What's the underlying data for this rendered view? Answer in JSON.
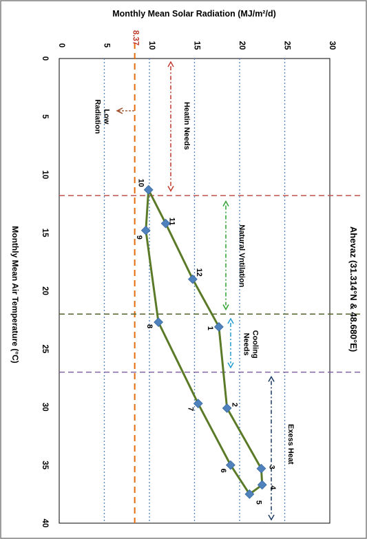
{
  "chart_data": {
    "type": "line",
    "title": "Ahevaz (31.314°N & 48.680°E)",
    "xlabel": "Monthly Mean Air Temperature (°C)",
    "ylabel": "Monthly Mean Solar Radiation (MJ/m²/d)",
    "xlim": [
      0,
      40
    ],
    "ylim": [
      0,
      30
    ],
    "x_ticks": [
      "0",
      "5",
      "10",
      "15",
      "20",
      "25",
      "30",
      "35",
      "40"
    ],
    "y_ticks": [
      "0",
      "5",
      "10",
      "15",
      "20",
      "25",
      "30"
    ],
    "grid": "horizontal dotted at y = 5, 10, 15, 20, 25",
    "orientation": "rotated 90° clockwise",
    "series": [
      {
        "color": "#5a7a28",
        "marker_color": "#4f81bd",
        "points": [
          {
            "label": "1",
            "x": 23.1,
            "y": 17.7
          },
          {
            "label": "2",
            "x": 30.1,
            "y": 18.6
          },
          {
            "label": "3",
            "x": 35.3,
            "y": 22.4
          },
          {
            "label": "4",
            "x": 36.7,
            "y": 22.5
          },
          {
            "label": "5",
            "x": 37.5,
            "y": 21.1
          },
          {
            "label": "6",
            "x": 35.0,
            "y": 19.0
          },
          {
            "label": "7",
            "x": 29.7,
            "y": 15.4
          },
          {
            "label": "8",
            "x": 22.7,
            "y": 11.0
          },
          {
            "label": "9",
            "x": 14.8,
            "y": 9.6
          },
          {
            "label": "10",
            "x": 11.3,
            "y": 9.9
          },
          {
            "label": "11",
            "x": 14.2,
            "y": 11.8
          },
          {
            "label": "12",
            "x": 19.0,
            "y": 14.8
          }
        ]
      }
    ],
    "reference_lines": [
      {
        "axis": "y",
        "value": 8.37,
        "label": "8.37",
        "color": "#e46c0a"
      },
      {
        "axis": "x",
        "value": 11.8,
        "color": "#c0504d"
      },
      {
        "axis": "x",
        "value": 22.0,
        "color": "#4f6228"
      },
      {
        "axis": "x",
        "value": 27.0,
        "color": "#8064a2"
      }
    ],
    "annotations": [
      {
        "text": "Heatin Needs",
        "color": "#c0392b"
      },
      {
        "text": "Natural Vntilation",
        "color": "#2ca02c"
      },
      {
        "text": "Cooling\nNeeds",
        "color": "#1f9bd1"
      },
      {
        "text": "Exess Heat",
        "color": "#17375e"
      },
      {
        "text": "Low\nRadiation",
        "color": "#a0522d"
      }
    ]
  }
}
